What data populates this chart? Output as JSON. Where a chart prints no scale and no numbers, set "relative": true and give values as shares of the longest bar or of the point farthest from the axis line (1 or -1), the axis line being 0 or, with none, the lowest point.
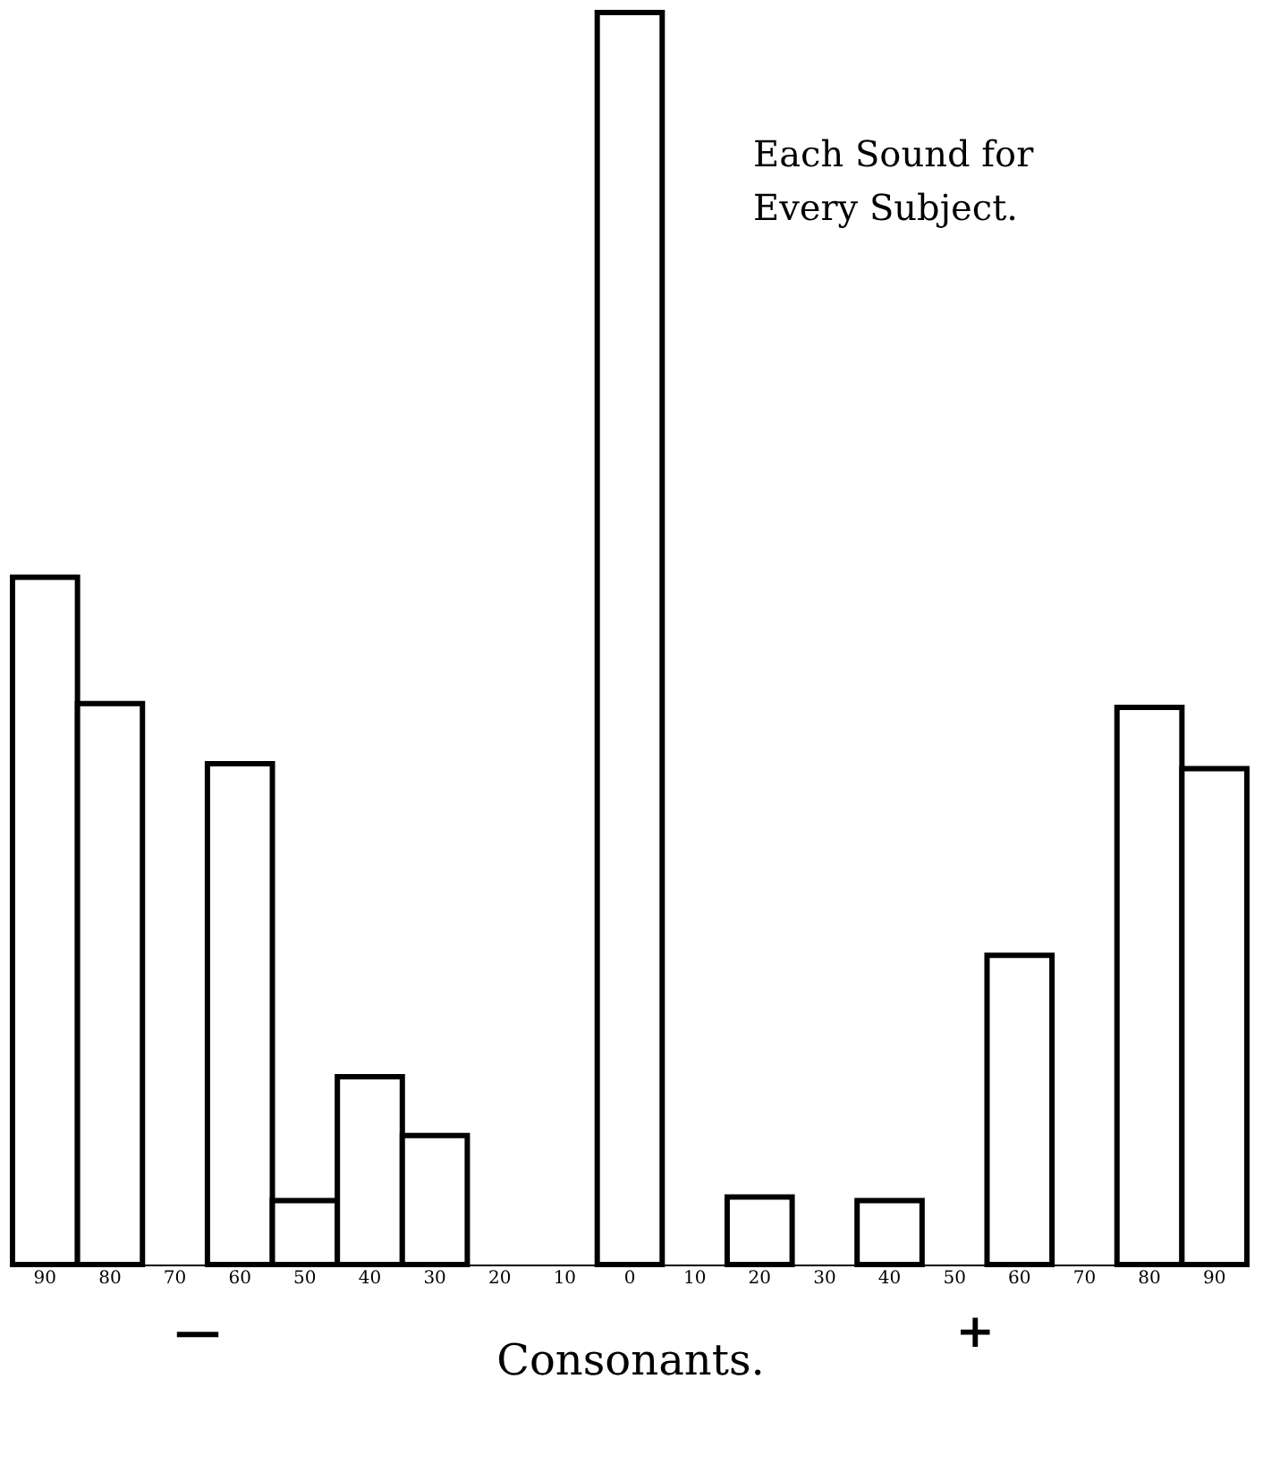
{
  "chart_data": {
    "type": "bar",
    "title": "Each Sound for Every Subject.",
    "xlabel": "Consonants.",
    "categories": [
      "90",
      "80",
      "70",
      "60",
      "50",
      "40",
      "30",
      "20",
      "10",
      "0",
      "10",
      "20",
      "30",
      "40",
      "50",
      "60",
      "70",
      "80",
      "90"
    ],
    "values": [
      0.549,
      0.448,
      0,
      0.4,
      0.051,
      0.15,
      0.103,
      0,
      0,
      1,
      0,
      0.054,
      0,
      0.051,
      0,
      0.247,
      0,
      0.445,
      0.396
    ],
    "color": "#ffffff",
    "relative": true,
    "grid": false,
    "annotations": [
      "—",
      "+"
    ]
  }
}
